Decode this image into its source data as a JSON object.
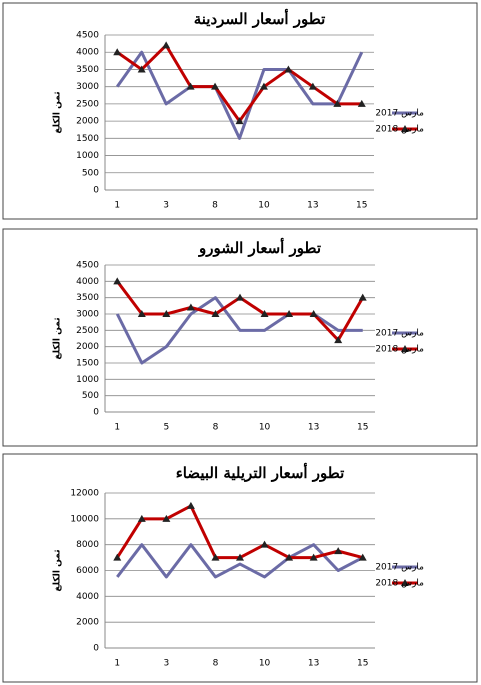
{
  "chart_data": [
    {
      "type": "line",
      "title": "تطور أسعار السردينة",
      "y_label": "ثمن الكلغ",
      "categories": [
        "1",
        null,
        "3",
        null,
        "8",
        null,
        "10",
        null,
        "13",
        null,
        "15"
      ],
      "series": [
        {
          "name": "مارس 2017",
          "color": "#6b6ba6",
          "values": [
            3000,
            4000,
            2500,
            3000,
            3000,
            1500,
            3500,
            3500,
            2500,
            2500,
            4000
          ]
        },
        {
          "name": "مارس 2018",
          "color": "#c00000",
          "marker": "triangle",
          "values": [
            4000,
            3500,
            4200,
            3000,
            3000,
            2000,
            3000,
            3500,
            3000,
            2500,
            2500
          ]
        }
      ],
      "ylim": [
        0,
        4500
      ],
      "yticks": [
        0,
        500,
        1000,
        1500,
        2000,
        2500,
        3000,
        3500,
        4000,
        4500
      ],
      "grid": true,
      "legend": "right"
    },
    {
      "type": "line",
      "title": "تطور أسعار الشورو",
      "y_label": "ثمن الكلغ",
      "categories": [
        "1",
        null,
        "5",
        null,
        "8",
        null,
        "10",
        null,
        "13",
        null,
        "15"
      ],
      "series": [
        {
          "name": "مارس 2017",
          "color": "#6b6ba6",
          "values": [
            3000,
            1500,
            2000,
            3000,
            3500,
            2500,
            2500,
            3000,
            3000,
            2500,
            2500
          ]
        },
        {
          "name": "مارس 2018",
          "color": "#c00000",
          "marker": "triangle",
          "values": [
            4000,
            3000,
            3000,
            3200,
            3000,
            3500,
            3000,
            3000,
            3000,
            2200,
            3500
          ]
        }
      ],
      "ylim": [
        0,
        4500
      ],
      "yticks": [
        0,
        500,
        1000,
        1500,
        2000,
        2500,
        3000,
        3500,
        4000,
        4500
      ],
      "grid": true,
      "legend": "right"
    },
    {
      "type": "line",
      "title": "تطور أسعار التريلية البيضاء",
      "y_label": "ثمن الكلغ",
      "categories": [
        "1",
        null,
        "3",
        null,
        "8",
        null,
        "10",
        null,
        "13",
        null,
        "15"
      ],
      "series": [
        {
          "name": "مارس 2017",
          "color": "#6b6ba6",
          "values": [
            5500,
            8000,
            5500,
            8000,
            5500,
            6500,
            5500,
            7000,
            8000,
            6000,
            7000
          ]
        },
        {
          "name": "مارس 2018",
          "color": "#c00000",
          "marker": "triangle",
          "values": [
            7000,
            10000,
            10000,
            11000,
            7000,
            7000,
            8000,
            7000,
            7000,
            7500,
            7000
          ]
        }
      ],
      "ylim": [
        0,
        12000
      ],
      "yticks": [
        0,
        2000,
        4000,
        6000,
        8000,
        10000,
        12000
      ],
      "grid": true,
      "legend": "right"
    }
  ]
}
